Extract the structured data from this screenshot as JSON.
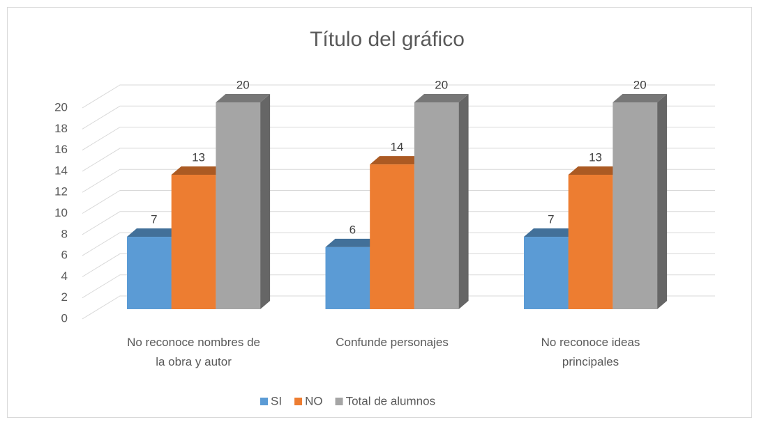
{
  "chart_data": {
    "type": "bar3d",
    "title": "Título del gráfico",
    "categories": [
      "No reconoce nombres de la obra y autor",
      "Confunde personajes",
      "No reconoce ideas principales"
    ],
    "series": [
      {
        "name": "SI",
        "color": "#5b9bd5",
        "values": [
          7,
          6,
          7
        ]
      },
      {
        "name": "NO",
        "color": "#ed7d31",
        "values": [
          13,
          14,
          13
        ]
      },
      {
        "name": "Total de alumnos",
        "color": "#a5a5a5",
        "values": [
          20,
          20,
          20
        ]
      }
    ],
    "ylim": [
      0,
      20
    ],
    "yticks": [
      0,
      2,
      4,
      6,
      8,
      10,
      12,
      14,
      16,
      18,
      20
    ],
    "grid": true,
    "legend": "bottom"
  }
}
